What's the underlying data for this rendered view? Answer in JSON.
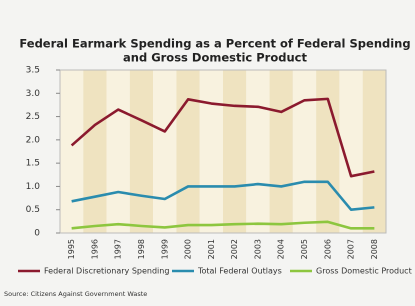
{
  "chart_data": {
    "type": "line",
    "title": [
      "Federal Earmark Spending as a Percent of Federal Spending",
      "and Gross Domestic Product"
    ],
    "categories": [
      "1995",
      "1996",
      "1997",
      "1998",
      "1999",
      "2000",
      "2001",
      "2002",
      "2003",
      "2004",
      "2005",
      "2006",
      "2007",
      "2008"
    ],
    "series": [
      {
        "name": "Federal Discretionary Spending",
        "color": "#8b1a2e",
        "values": [
          1.88,
          2.32,
          2.65,
          2.42,
          2.18,
          2.87,
          2.78,
          2.73,
          2.71,
          2.6,
          2.85,
          2.88,
          1.22,
          1.32
        ]
      },
      {
        "name": "Total Federal Outlays",
        "color": "#2a8cae",
        "values": [
          0.68,
          0.78,
          0.88,
          0.8,
          0.73,
          1.0,
          1.0,
          1.0,
          1.05,
          1.0,
          1.1,
          1.1,
          0.5,
          0.55
        ]
      },
      {
        "name": "Gross Domestic Product",
        "color": "#8dc63f",
        "values": [
          0.1,
          0.15,
          0.19,
          0.15,
          0.12,
          0.17,
          0.17,
          0.19,
          0.2,
          0.19,
          0.22,
          0.24,
          0.1,
          0.1
        ]
      }
    ],
    "ylim": [
      0,
      3.5
    ],
    "yticks": [
      0,
      0.5,
      {
        "value": 1,
        "label": "1.0"
      },
      {
        "value": 1.5,
        "label": "1.5"
      },
      {
        "value": 2,
        "label": "2.0"
      },
      {
        "value": 2.5,
        "label": "2.5"
      },
      {
        "value": 3,
        "label": "3.0"
      },
      {
        "value": 3.5,
        "label": "3.5"
      }
    ],
    "grid": false,
    "source": "Source: Citizens Against Government Waste"
  }
}
